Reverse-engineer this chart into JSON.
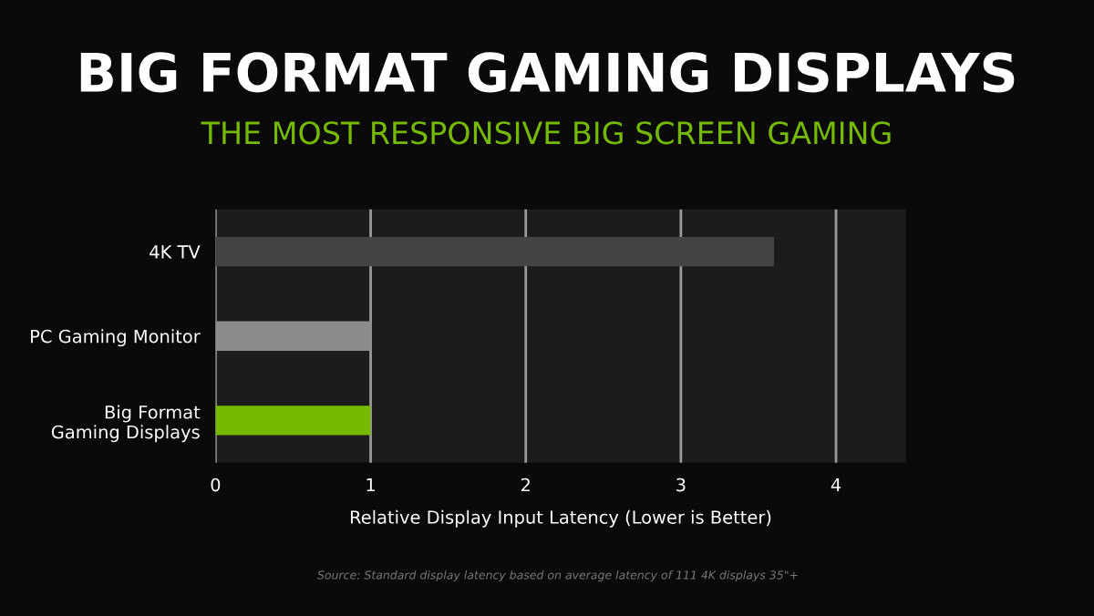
{
  "chart_data": {
    "type": "bar",
    "orientation": "horizontal",
    "title": "BIG FORMAT GAMING DISPLAYS",
    "subtitle": "THE MOST RESPONSIVE BIG SCREEN GAMING",
    "categories": [
      "4K TV",
      "PC Gaming Monitor",
      "Big Format\nGaming Displays"
    ],
    "values": [
      3.6,
      1,
      1
    ],
    "colors": [
      "#444444",
      "#8c8c8c",
      "#76b900"
    ],
    "xlim": [
      0,
      4.45
    ],
    "xticks": [
      0,
      1,
      2,
      3,
      4
    ],
    "grid": "x",
    "xlabel": "Relative Display Input Latency (Lower is Better)",
    "annotations": [
      "Source: Standard display latency based on average latency of 111 4K displays 35\"+"
    ]
  }
}
